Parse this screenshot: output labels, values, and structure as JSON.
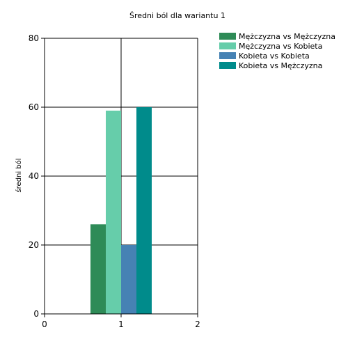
{
  "chart_data": {
    "type": "bar",
    "title": "Średni ból dla wariantu 1",
    "xlabel": "",
    "ylabel": "średni ból",
    "x_ticks": [
      "0",
      "1",
      "2"
    ],
    "xlim": [
      0,
      2
    ],
    "ylim": [
      0,
      80
    ],
    "y_ticks": [
      0,
      20,
      40,
      60,
      80
    ],
    "grid": true,
    "legend_position": "top-right",
    "x": [
      1
    ],
    "series": [
      {
        "name": "Mężczyzna vs Mężczyzna",
        "values": [
          26
        ],
        "color": "#2e8b57"
      },
      {
        "name": "Mężczyzna vs Kobieta",
        "values": [
          59
        ],
        "color": "#66cdaa"
      },
      {
        "name": "Kobieta vs Kobieta",
        "values": [
          20
        ],
        "color": "#4682b4"
      },
      {
        "name": "Kobieta vs Mężczyzna",
        "values": [
          60
        ],
        "color": "#008b8b"
      }
    ]
  }
}
